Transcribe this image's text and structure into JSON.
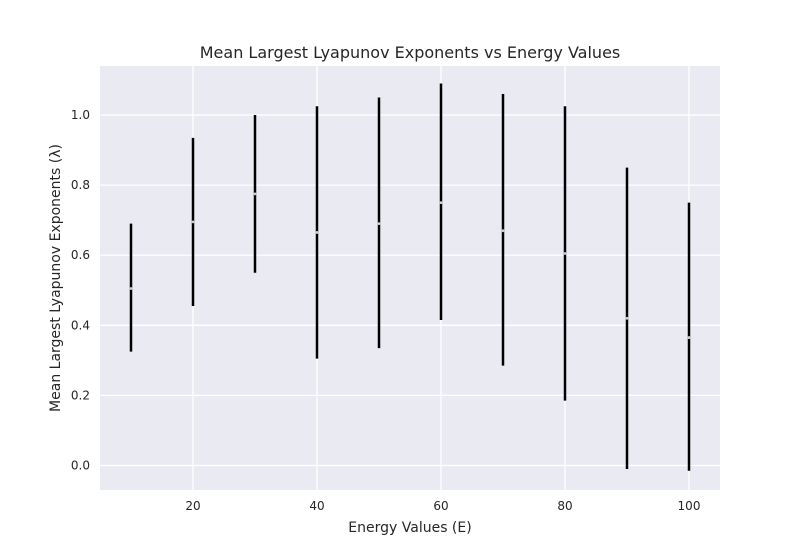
{
  "chart_data": {
    "type": "errorbar",
    "title": "Mean Largest Lyapunov Exponents vs Energy Values",
    "xlabel": "Energy Values (E)",
    "ylabel": "Mean Largest Lyapunov Exponents (λ)",
    "xlim": [
      5,
      105
    ],
    "ylim": [
      -0.07,
      1.14
    ],
    "xticks": [
      20,
      40,
      60,
      80,
      100
    ],
    "yticks": [
      0.0,
      0.2,
      0.4,
      0.6,
      0.8,
      1.0
    ],
    "ytick_labels": [
      "0.0",
      "0.2",
      "0.4",
      "0.6",
      "0.8",
      "1.0"
    ],
    "grid": true,
    "points": [
      {
        "x": 10,
        "mean": 0.505,
        "low": 0.325,
        "high": 0.69
      },
      {
        "x": 20,
        "mean": 0.695,
        "low": 0.455,
        "high": 0.935
      },
      {
        "x": 30,
        "mean": 0.775,
        "low": 0.55,
        "high": 1.0
      },
      {
        "x": 40,
        "mean": 0.665,
        "low": 0.305,
        "high": 1.025
      },
      {
        "x": 50,
        "mean": 0.69,
        "low": 0.335,
        "high": 1.05
      },
      {
        "x": 60,
        "mean": 0.75,
        "low": 0.415,
        "high": 1.09
      },
      {
        "x": 70,
        "mean": 0.67,
        "low": 0.285,
        "high": 1.06
      },
      {
        "x": 80,
        "mean": 0.605,
        "low": 0.185,
        "high": 1.025
      },
      {
        "x": 90,
        "mean": 0.42,
        "low": -0.01,
        "high": 0.85
      },
      {
        "x": 100,
        "mean": 0.365,
        "low": -0.015,
        "high": 0.75
      }
    ],
    "colors": {
      "errorbar": "#000000",
      "background": "#eaeaf2",
      "grid": "#ffffff"
    }
  }
}
